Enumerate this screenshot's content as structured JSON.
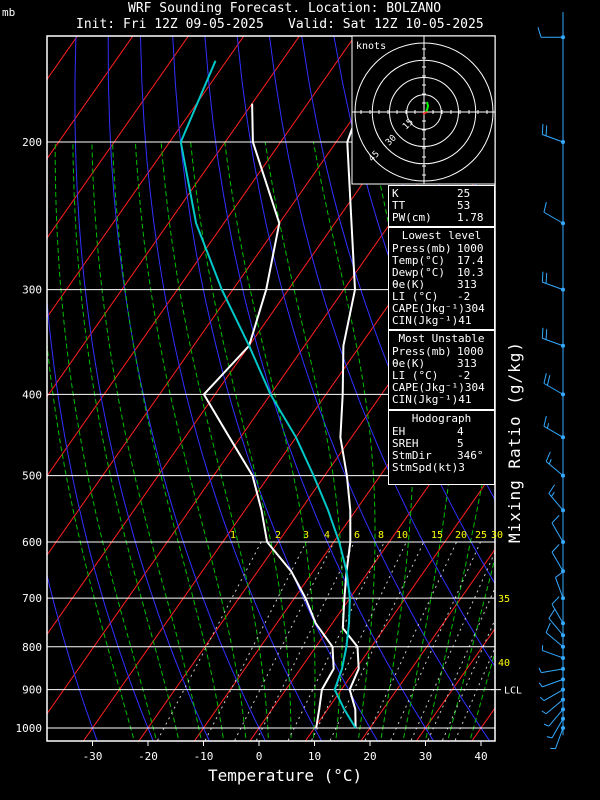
{
  "header": {
    "title": "WRF Sounding Forecast. Location: BOLZANO",
    "init": "Init: Fri 12Z 09-05-2025",
    "valid": "Valid: Sat 12Z 10-05-2025",
    "pressure_unit": "mb"
  },
  "hodograph": {
    "label": "knots",
    "ring_labels": [
      "15",
      "30",
      "45"
    ]
  },
  "indices": [
    {
      "k": "K",
      "v": "25"
    },
    {
      "k": "TT",
      "v": "53"
    },
    {
      "k": "PW(cm)",
      "v": "1.78"
    }
  ],
  "lowest_level": {
    "title": "Lowest level",
    "rows": [
      {
        "k": "Press(mb)",
        "v": "1000"
      },
      {
        "k": "Temp(°C)",
        "v": "17.4"
      },
      {
        "k": "Dewp(°C)",
        "v": "10.3"
      },
      {
        "k": "θe(K)",
        "v": "313"
      },
      {
        "k": "LI (°C)",
        "v": "-2"
      },
      {
        "k": "CAPE(Jkg⁻¹)",
        "v": "304"
      },
      {
        "k": "CIN(Jkg⁻¹)",
        "v": "41"
      }
    ]
  },
  "most_unstable": {
    "title": "Most Unstable",
    "rows": [
      {
        "k": "Press(mb)",
        "v": "1000"
      },
      {
        "k": "θe(K)",
        "v": "313"
      },
      {
        "k": "LI (°C)",
        "v": "-2"
      },
      {
        "k": "CAPE(Jkg⁻¹)",
        "v": "304"
      },
      {
        "k": "CIN(Jkg⁻¹)",
        "v": "41"
      }
    ]
  },
  "hodograph_panel": {
    "title": "Hodograph",
    "rows": [
      {
        "k": "EH",
        "v": "4"
      },
      {
        "k": "SREH",
        "v": "5"
      },
      {
        "k": "StmDir",
        "v": "346°"
      },
      {
        "k": "StmSpd(kt)",
        "v": "3"
      }
    ]
  },
  "right_label": "Mixing Ratio (g/kg)",
  "colors": {
    "isotherm": "#ff2020",
    "dry_adiabat": "#3030ff",
    "moist_adiabat": "#00c000",
    "parcel": "#00c8c8",
    "wind": "#33aaff",
    "mixing_label": "#ffff00"
  },
  "chart_data": {
    "type": "line",
    "xlabel": "Temperature (°C)",
    "ylabel": "mb",
    "xlim": [
      -39,
      42
    ],
    "ylim": [
      1025,
      140
    ],
    "y_scale": "log",
    "x_ticks": [
      -30,
      -20,
      -10,
      0,
      10,
      20,
      30,
      40
    ],
    "y_ticks": [
      200,
      300,
      400,
      500,
      600,
      700,
      800,
      900,
      1000
    ],
    "mixing_ratio_labels": [
      "1",
      "2",
      "3",
      "4",
      "6",
      "8",
      "10",
      "15",
      "20",
      "25",
      "30",
      "35",
      "40"
    ],
    "lcl_label": "LCL",
    "lcl_pressure": 900,
    "series": [
      {
        "values": [
          [
            17.4,
            1000
          ],
          [
            15,
            950
          ],
          [
            11.5,
            900
          ],
          [
            10.5,
            850
          ],
          [
            7.5,
            800
          ],
          [
            2.5,
            760
          ],
          [
            -1,
            700
          ],
          [
            -4,
            650
          ],
          [
            -7,
            600
          ],
          [
            -11,
            550
          ],
          [
            -16,
            500
          ],
          [
            -22,
            450
          ],
          [
            -27,
            400
          ],
          [
            -33,
            350
          ],
          [
            -38,
            300
          ],
          [
            -47,
            250
          ],
          [
            -58,
            200
          ],
          [
            -63,
            160
          ]
        ]
      },
      {
        "values": [
          [
            10.3,
            1000
          ],
          [
            8.5,
            950
          ],
          [
            6.5,
            900
          ],
          [
            6,
            850
          ],
          [
            3,
            800
          ],
          [
            -3,
            750
          ],
          [
            -8,
            700
          ],
          [
            -14,
            650
          ],
          [
            -22,
            600
          ],
          [
            -27,
            550
          ],
          [
            -33,
            500
          ],
          [
            -42,
            450
          ],
          [
            -52,
            400
          ],
          [
            -50,
            350
          ],
          [
            -54,
            300
          ],
          [
            -60,
            250
          ],
          [
            -75,
            200
          ],
          [
            -80,
            180
          ]
        ]
      },
      {
        "values": [
          [
            17.4,
            1000
          ],
          [
            13,
            950
          ],
          [
            8.8,
            900
          ],
          [
            7.5,
            850
          ],
          [
            5.5,
            800
          ],
          [
            3,
            750
          ],
          [
            0,
            700
          ],
          [
            -4,
            650
          ],
          [
            -9,
            600
          ],
          [
            -15,
            550
          ],
          [
            -22,
            500
          ],
          [
            -30,
            450
          ],
          [
            -40,
            400
          ],
          [
            -50,
            350
          ],
          [
            -62,
            300
          ],
          [
            -75,
            250
          ],
          [
            -88,
            200
          ],
          [
            -92,
            160
          ]
        ]
      }
    ],
    "wind_profile": [
      {
        "p": 1000,
        "dir": 200,
        "spd": 5
      },
      {
        "p": 975,
        "dir": 210,
        "spd": 5
      },
      {
        "p": 950,
        "dir": 220,
        "spd": 5
      },
      {
        "p": 925,
        "dir": 230,
        "spd": 5
      },
      {
        "p": 900,
        "dir": 240,
        "spd": 5
      },
      {
        "p": 875,
        "dir": 250,
        "spd": 5
      },
      {
        "p": 850,
        "dir": 260,
        "spd": 5
      },
      {
        "p": 825,
        "dir": 290,
        "spd": 5
      },
      {
        "p": 800,
        "dir": 310,
        "spd": 10
      },
      {
        "p": 775,
        "dir": 320,
        "spd": 10
      },
      {
        "p": 750,
        "dir": 330,
        "spd": 10
      },
      {
        "p": 700,
        "dir": 340,
        "spd": 10
      },
      {
        "p": 650,
        "dir": 330,
        "spd": 10
      },
      {
        "p": 600,
        "dir": 330,
        "spd": 10
      },
      {
        "p": 550,
        "dir": 320,
        "spd": 15
      },
      {
        "p": 500,
        "dir": 310,
        "spd": 15
      },
      {
        "p": 450,
        "dir": 300,
        "spd": 15
      },
      {
        "p": 400,
        "dir": 300,
        "spd": 20
      },
      {
        "p": 350,
        "dir": 290,
        "spd": 20
      },
      {
        "p": 300,
        "dir": 290,
        "spd": 20
      },
      {
        "p": 250,
        "dir": 300,
        "spd": 10
      },
      {
        "p": 200,
        "dir": 290,
        "spd": 20
      },
      {
        "p": 150,
        "dir": 270,
        "spd": 10
      }
    ]
  }
}
